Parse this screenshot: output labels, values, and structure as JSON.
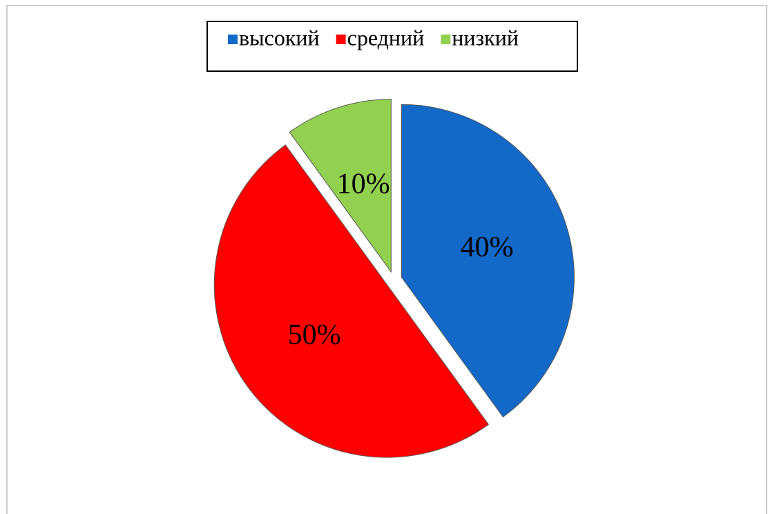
{
  "chart_data": {
    "type": "pie",
    "categories": [
      "высокий",
      "средний",
      "низкий"
    ],
    "values": [
      40,
      50,
      10
    ],
    "value_labels": [
      "40%",
      "50%",
      "10%"
    ],
    "colors": [
      "#1369c8",
      "#ff0000",
      "#92d050"
    ],
    "legend": "top"
  }
}
